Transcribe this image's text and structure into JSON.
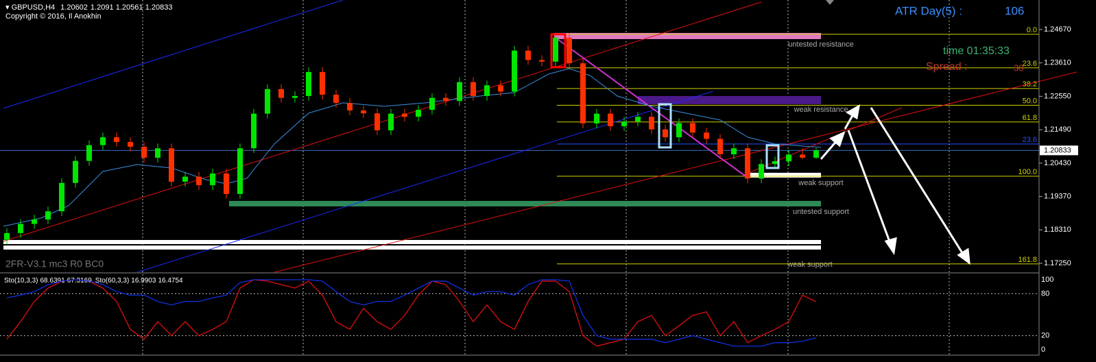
{
  "chart_data": [
    {
      "type": "candlestick",
      "symbol": "GBPUSD,H4",
      "ohlc": [
        1.20602,
        1.2091,
        1.20561,
        1.20833
      ],
      "copyright": "Copyright © 2016, Il Anokhin",
      "open": [
        1.18,
        1.1821,
        1.185,
        1.1864,
        1.189,
        1.198,
        1.205,
        1.21,
        1.2125,
        1.211,
        1.2095,
        1.206,
        1.209,
        1.1984,
        1.2,
        1.1973,
        1.201,
        1.1945,
        1.209,
        1.22,
        1.2278,
        1.225,
        1.2256,
        1.2332,
        1.226,
        1.2234,
        1.221,
        1.2201,
        1.2147,
        1.22,
        1.219,
        1.2212,
        1.225,
        1.224,
        1.23,
        1.2256,
        1.229,
        1.227,
        1.24,
        1.237,
        1.2365,
        1.2441,
        1.236,
        1.2169,
        1.22,
        1.216,
        1.2175,
        1.219,
        1.215,
        1.2125,
        1.217,
        1.214,
        1.212,
        1.2071,
        1.209,
        1.1994,
        1.204,
        1.2049,
        1.207,
        1.20602
      ],
      "high": [
        1.1836,
        1.1865,
        1.1879,
        1.1905,
        1.1995,
        1.2065,
        1.2115,
        1.214,
        1.214,
        1.2125,
        1.211,
        1.2105,
        1.2105,
        1.2015,
        1.2015,
        1.2025,
        1.2025,
        1.2105,
        1.2215,
        1.2293,
        1.2293,
        1.2271,
        1.2347,
        1.2347,
        1.2275,
        1.2249,
        1.2225,
        1.2216,
        1.2215,
        1.2215,
        1.2227,
        1.2265,
        1.2265,
        1.2315,
        1.2315,
        1.2305,
        1.2305,
        1.2415,
        1.2415,
        1.2385,
        1.2456,
        1.2456,
        1.2375,
        1.2215,
        1.2215,
        1.219,
        1.2205,
        1.2205,
        1.2165,
        1.2185,
        1.2185,
        1.2155,
        1.2135,
        1.2105,
        1.2105,
        1.2055,
        1.2064,
        1.2085,
        1.209,
        1.2091
      ],
      "low": [
        1.1785,
        1.1806,
        1.1835,
        1.1849,
        1.1875,
        1.1965,
        1.2035,
        1.2085,
        1.2095,
        1.208,
        1.2045,
        1.2045,
        1.1969,
        1.1969,
        1.1958,
        1.1958,
        1.193,
        1.193,
        1.2075,
        1.2185,
        1.2235,
        1.2235,
        1.2241,
        1.2245,
        1.2219,
        1.2195,
        1.2186,
        1.2132,
        1.2132,
        1.2175,
        1.2175,
        1.2197,
        1.2225,
        1.2225,
        1.2241,
        1.2241,
        1.2255,
        1.2255,
        1.2355,
        1.235,
        1.235,
        1.2345,
        1.2154,
        1.2154,
        1.2145,
        1.2145,
        1.216,
        1.2135,
        1.211,
        1.211,
        1.2125,
        1.2105,
        1.2056,
        1.2056,
        1.1979,
        1.1979,
        1.2025,
        1.2034,
        1.2055,
        1.20561
      ],
      "close": [
        1.1821,
        1.185,
        1.1864,
        1.189,
        1.198,
        1.205,
        1.21,
        1.2125,
        1.211,
        1.2095,
        1.206,
        1.209,
        1.1984,
        1.2,
        1.1973,
        1.201,
        1.1945,
        1.209,
        1.22,
        1.2278,
        1.225,
        1.2256,
        1.2332,
        1.226,
        1.2234,
        1.221,
        1.2201,
        1.2147,
        1.22,
        1.219,
        1.2212,
        1.225,
        1.224,
        1.23,
        1.2256,
        1.229,
        1.227,
        1.24,
        1.237,
        1.2365,
        1.2441,
        1.236,
        1.2169,
        1.22,
        1.216,
        1.2175,
        1.219,
        1.215,
        1.2125,
        1.217,
        1.214,
        1.212,
        1.2071,
        1.209,
        1.1994,
        1.204,
        1.2049,
        1.207,
        1.20602,
        1.20833
      ],
      "colors": {
        "up": "#00e600",
        "down": "#ff3000"
      },
      "ylim": [
        1.16968,
        1.25606
      ],
      "yticks": [
        {
          "value": 1.2467,
          "label": "1.24670"
        },
        {
          "value": 1.2361,
          "label": "1.23610"
        },
        {
          "value": 1.2255,
          "label": "1.22550"
        },
        {
          "value": 1.2149,
          "label": "1.21490"
        },
        {
          "value": 1.2043,
          "label": "1.20430"
        },
        {
          "value": 1.1937,
          "label": "1.19370"
        },
        {
          "value": 1.1831,
          "label": "1.18310"
        },
        {
          "value": 1.1725,
          "label": "1.17250"
        }
      ],
      "current_price": 1.20833,
      "atr_label": "ATR Day(5) :",
      "atr_value": 106,
      "time_label": "time 01:35:33",
      "spread_label": "Spread :",
      "spread_value": 30,
      "indicator_label": "2FR-V3.1 mc3 R0 BC0",
      "zones": [
        {
          "label": "untested resistance",
          "top": 1.24561,
          "bottom": 1.24365,
          "color": "#e07ac0"
        },
        {
          "label": "weak resistance",
          "top": 1.22559,
          "bottom": 1.22298,
          "color": "#4b1a8a"
        },
        {
          "label": "weak support",
          "top": 1.20123,
          "bottom": 1.1997,
          "color": "#ffffff"
        },
        {
          "label": "untested support",
          "top": 1.1923,
          "bottom": 1.19056,
          "color": "#2e8b57"
        },
        {
          "top": 1.1799,
          "bottom": 1.1786,
          "color": "#ffffff"
        },
        {
          "top": 1.17815,
          "bottom": 1.17686,
          "color": "#ffffff"
        }
      ],
      "annotations": [
        {
          "text": "weak support",
          "price": 1.1721
        }
      ],
      "fib": {
        "high": 1.24518,
        "low": 1.20014,
        "color": "#d4d400",
        "levels": [
          {
            "value": 0,
            "label": "0.0"
          },
          23.6,
          38.2,
          {
            "value": 50,
            "label": "50.0"
          },
          61.8,
          {
            "value": 100,
            "label": "100.0"
          },
          161.8
        ]
      },
      "second_fib": {
        "label": 23.6,
        "price": 1.21037,
        "color": "#2a4fff"
      }
    },
    {
      "type": "line",
      "title": "Sto(10,3,3)",
      "title2": "Sto(60,3,3)",
      "header_values": [
        68.6391,
        67.3169
      ],
      "header_values2": [
        16.9903,
        16.4754
      ],
      "series": [
        {
          "name": "Sto(10,3,3)",
          "color": "#e01010",
          "values": [
            15,
            40,
            69,
            88,
            98,
            100,
            98,
            88,
            69,
            29,
            15,
            40,
            20,
            40,
            20,
            29,
            40,
            88,
            100,
            98,
            93,
            88,
            98,
            78,
            40,
            29,
            59,
            40,
            29,
            49,
            78,
            98,
            93,
            69,
            40,
            64,
            40,
            29,
            69,
            98,
            98,
            83,
            20,
            5,
            10,
            15,
            40,
            49,
            20,
            34,
            49,
            54,
            20,
            40,
            10,
            20,
            29,
            40,
            78,
            68.6391
          ]
        },
        {
          "name": "Sto(60,3,3)",
          "color": "#1030e0",
          "values": [
            74,
            78,
            83,
            93,
            98,
            100,
            98,
            93,
            83,
            78,
            78,
            69,
            64,
            69,
            69,
            74,
            78,
            96,
            100,
            100,
            100,
            100,
            100,
            98,
            83,
            69,
            64,
            69,
            69,
            78,
            88,
            98,
            98,
            88,
            78,
            83,
            83,
            78,
            93,
            100,
            100,
            98,
            49,
            20,
            15,
            15,
            15,
            15,
            10,
            15,
            20,
            15,
            10,
            5,
            5,
            5,
            10,
            10,
            12,
            16.9903
          ]
        }
      ],
      "ylim": [
        0,
        100
      ],
      "yticks": [
        100,
        80,
        20,
        0
      ]
    }
  ]
}
